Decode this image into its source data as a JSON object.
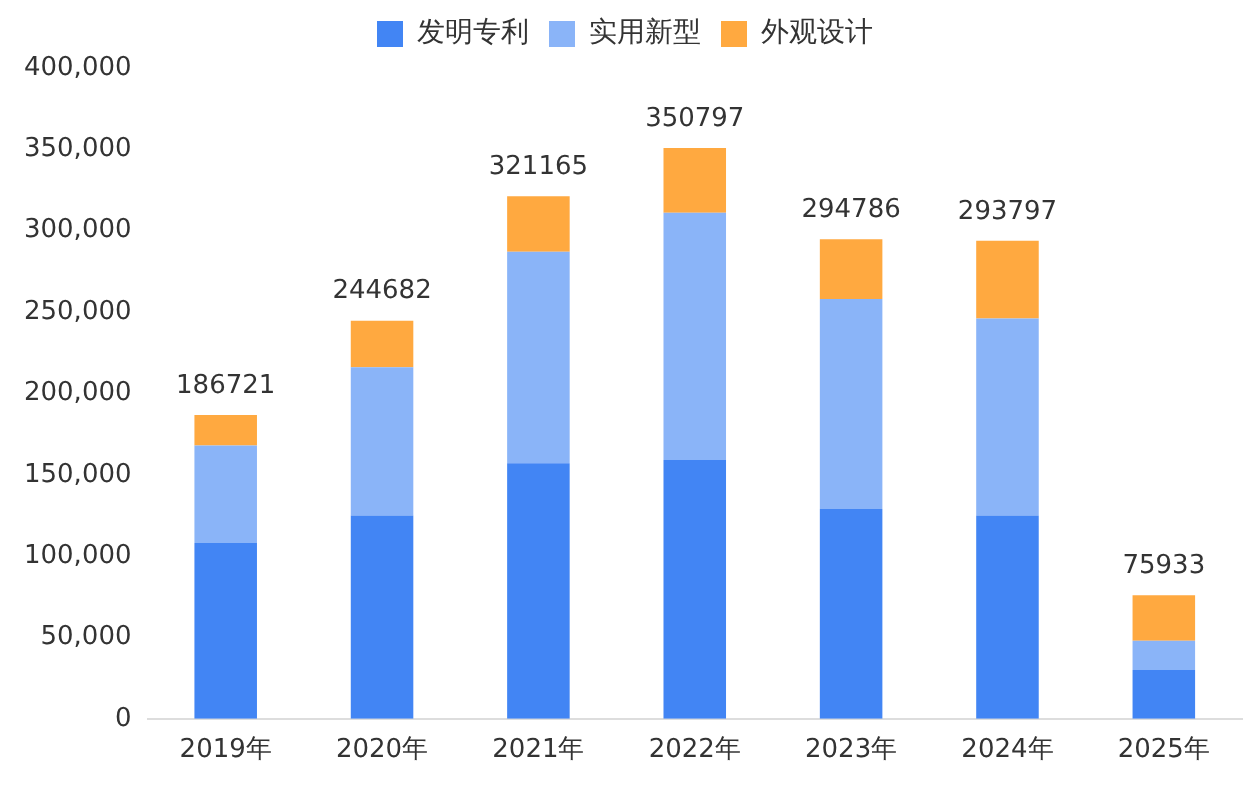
{
  "chart_data": {
    "type": "bar",
    "stacked": true,
    "categories": [
      "2019年",
      "2020年",
      "2021年",
      "2022年",
      "2023年",
      "2024年",
      "2025年"
    ],
    "series": [
      {
        "name": "发明专利",
        "color": "#4285f4",
        "values": [
          108000,
          125000,
          157000,
          159000,
          129000,
          125000,
          30000
        ]
      },
      {
        "name": "实用新型",
        "color": "#8ab4f8",
        "values": [
          60000,
          91000,
          130000,
          152000,
          129000,
          121000,
          18000
        ]
      },
      {
        "name": "外观设计",
        "color": "#ffa940",
        "values": [
          18721,
          28682,
          34165,
          39797,
          36786,
          47797,
          27933
        ]
      }
    ],
    "totals": [
      "186721",
      "244682",
      "321165",
      "350797",
      "294786",
      "293797",
      "75933"
    ],
    "ylim": [
      0,
      400000
    ],
    "yticks": [
      {
        "value": 0,
        "label": "0"
      },
      {
        "value": 50000,
        "label": "50,000"
      },
      {
        "value": 100000,
        "label": "100,000"
      },
      {
        "value": 150000,
        "label": "150,000"
      },
      {
        "value": 200000,
        "label": "200,000"
      },
      {
        "value": 250000,
        "label": "250,000"
      },
      {
        "value": 300000,
        "label": "300,000"
      },
      {
        "value": 350000,
        "label": "350,000"
      },
      {
        "value": 400000,
        "label": "400,000"
      }
    ],
    "grid": false,
    "legend": "top"
  }
}
